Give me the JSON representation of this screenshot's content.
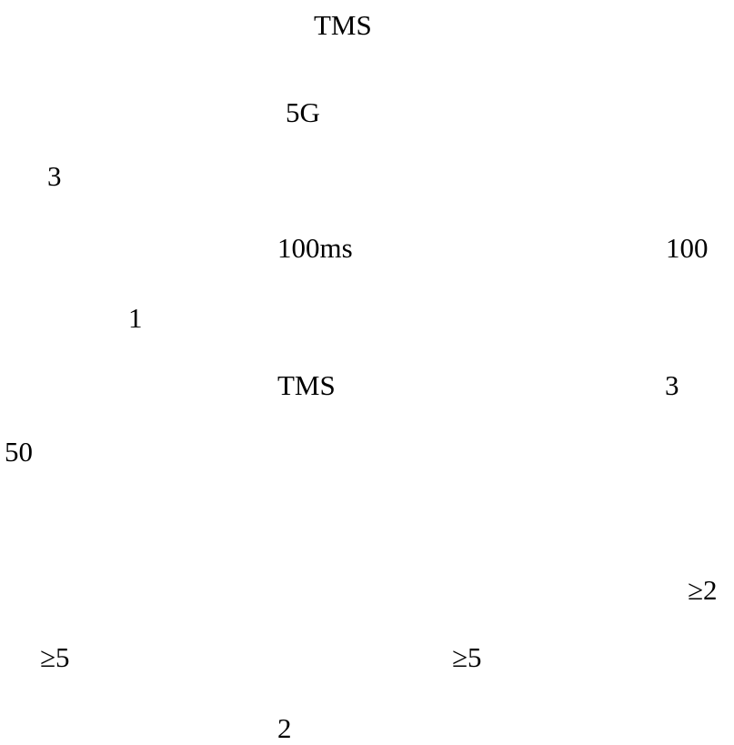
{
  "fragments": [
    "TMS",
    "5G",
    "3",
    "100ms",
    "100",
    "1",
    "TMS",
    "3",
    "50",
    "≥2",
    "≥5",
    "≥5",
    "2"
  ]
}
